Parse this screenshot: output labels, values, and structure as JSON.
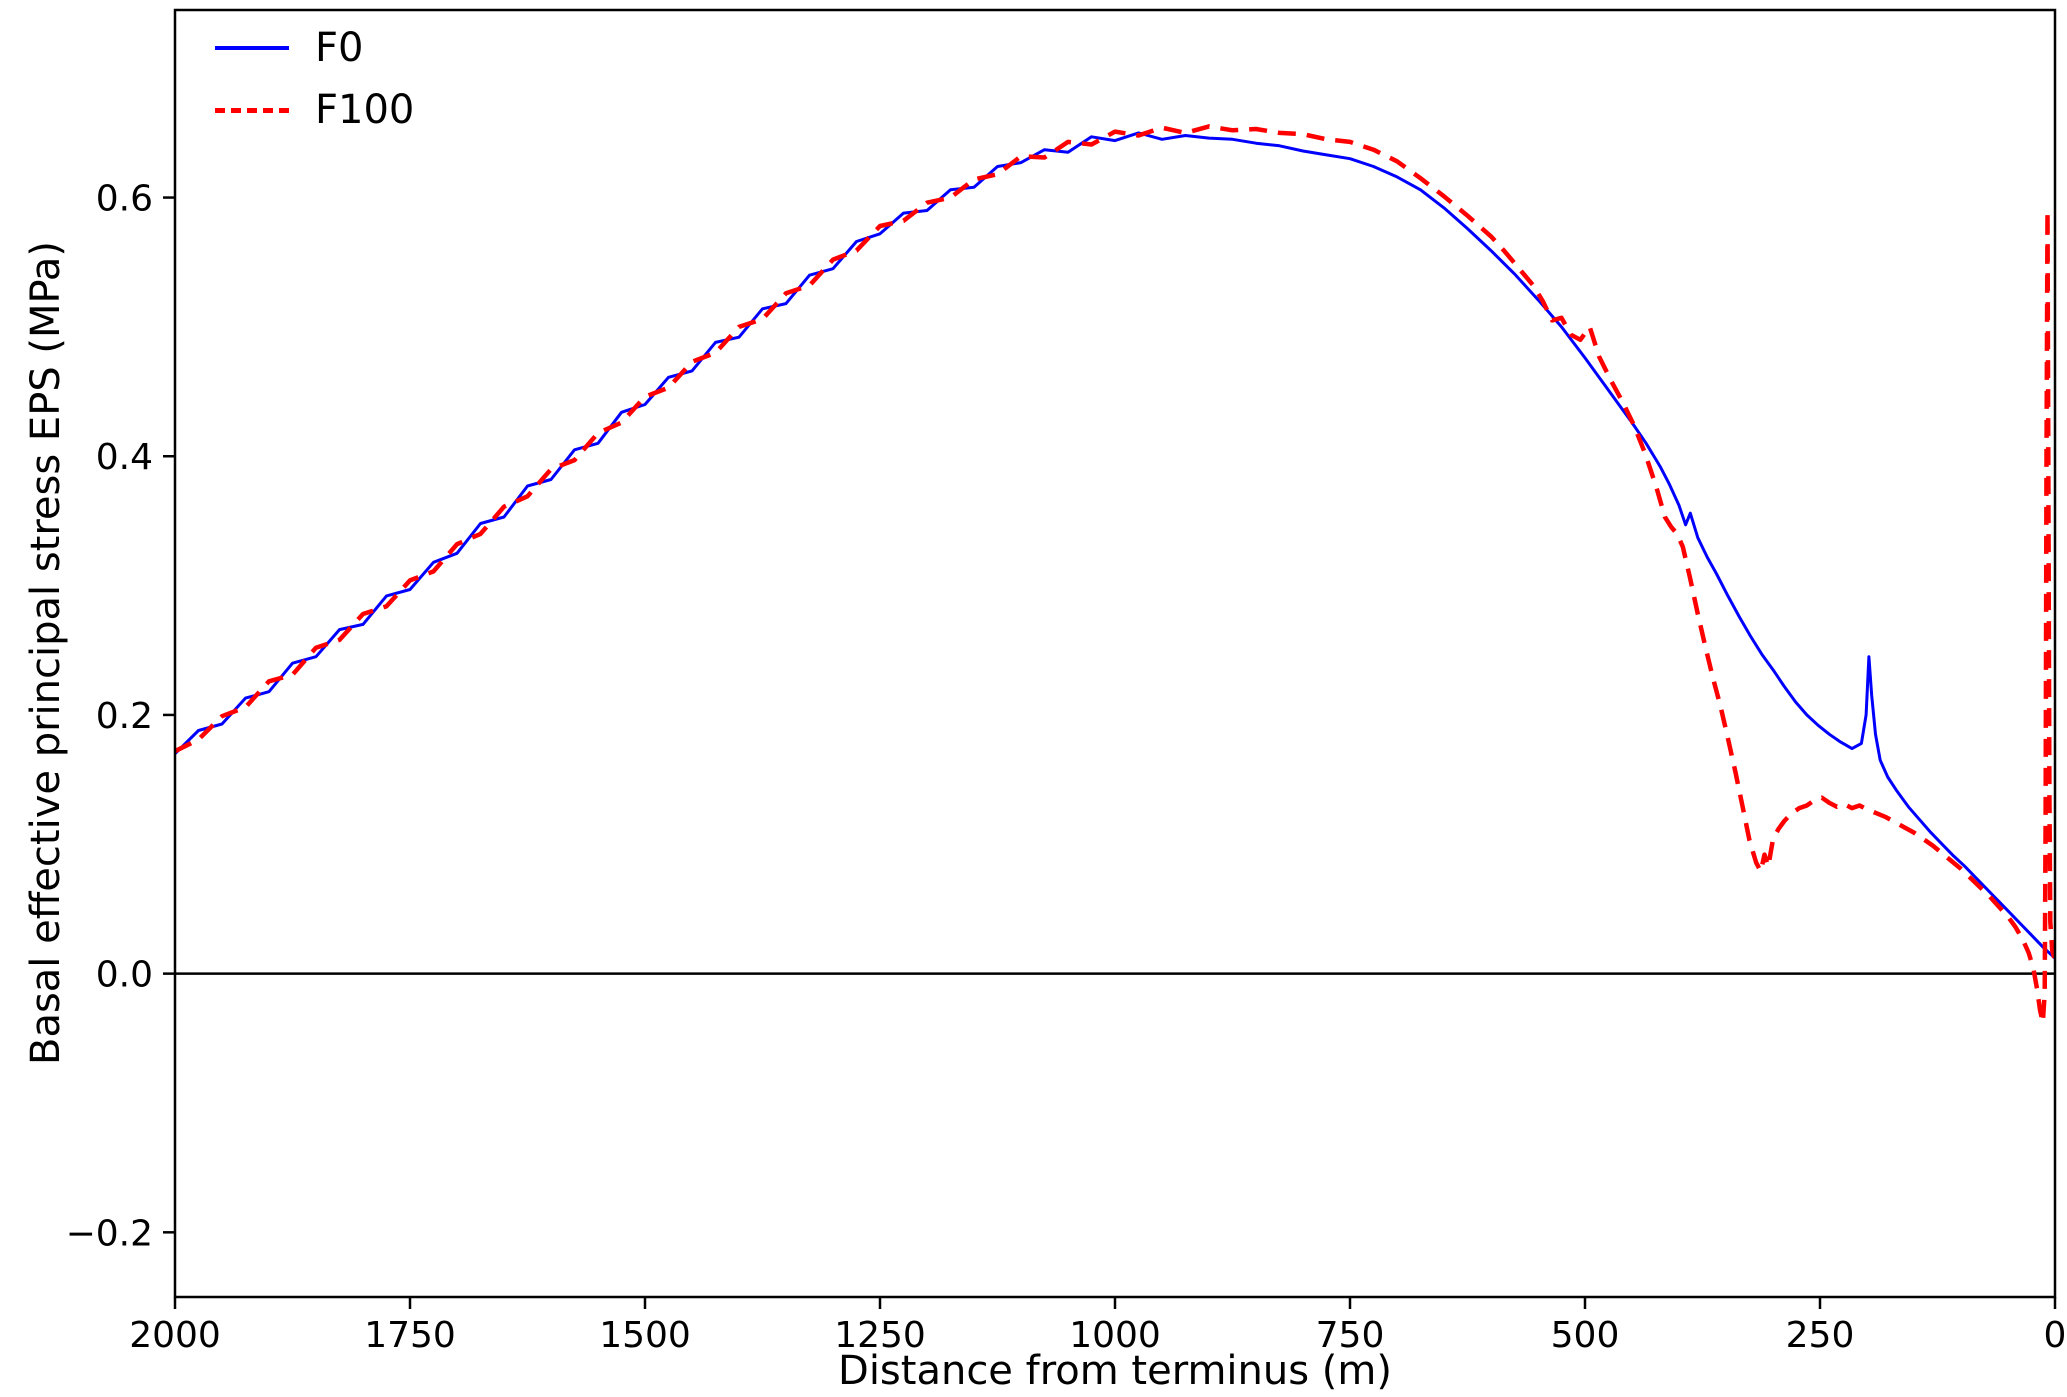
{
  "chart_data": {
    "type": "line",
    "title": "",
    "xlabel": "Distance from terminus (m)",
    "ylabel": "Basal effective principal stress EPS (MPa)",
    "xlim": [
      2000,
      0
    ],
    "ylim": [
      -0.25,
      0.745
    ],
    "x_axis_reversed": true,
    "grid": false,
    "zero_line": true,
    "legend_position": "upper left",
    "xticks": [
      {
        "v": 2000,
        "label": "2000"
      },
      {
        "v": 1750,
        "label": "1750"
      },
      {
        "v": 1500,
        "label": "1500"
      },
      {
        "v": 1250,
        "label": "1250"
      },
      {
        "v": 1000,
        "label": "1000"
      },
      {
        "v": 750,
        "label": "750"
      },
      {
        "v": 500,
        "label": "500"
      },
      {
        "v": 250,
        "label": "250"
      },
      {
        "v": 0,
        "label": "0"
      }
    ],
    "yticks": [
      {
        "v": -0.2,
        "label": "−0.2"
      },
      {
        "v": 0.0,
        "label": "0.0"
      },
      {
        "v": 0.2,
        "label": "0.2"
      },
      {
        "v": 0.4,
        "label": "0.4"
      },
      {
        "v": 0.6,
        "label": "0.6"
      }
    ],
    "series": [
      {
        "name": "F0",
        "color": "#0000ff",
        "line_style": "solid",
        "points": [
          [
            2000,
            0.17
          ],
          [
            1975,
            0.188
          ],
          [
            1950,
            0.193
          ],
          [
            1925,
            0.213
          ],
          [
            1900,
            0.218
          ],
          [
            1875,
            0.24
          ],
          [
            1850,
            0.245
          ],
          [
            1825,
            0.266
          ],
          [
            1800,
            0.27
          ],
          [
            1775,
            0.292
          ],
          [
            1750,
            0.297
          ],
          [
            1725,
            0.318
          ],
          [
            1700,
            0.325
          ],
          [
            1675,
            0.348
          ],
          [
            1650,
            0.353
          ],
          [
            1625,
            0.377
          ],
          [
            1600,
            0.382
          ],
          [
            1575,
            0.405
          ],
          [
            1550,
            0.41
          ],
          [
            1525,
            0.434
          ],
          [
            1500,
            0.44
          ],
          [
            1475,
            0.461
          ],
          [
            1450,
            0.466
          ],
          [
            1425,
            0.488
          ],
          [
            1400,
            0.492
          ],
          [
            1375,
            0.514
          ],
          [
            1350,
            0.518
          ],
          [
            1325,
            0.54
          ],
          [
            1300,
            0.545
          ],
          [
            1275,
            0.566
          ],
          [
            1250,
            0.572
          ],
          [
            1225,
            0.588
          ],
          [
            1200,
            0.59
          ],
          [
            1175,
            0.606
          ],
          [
            1150,
            0.608
          ],
          [
            1125,
            0.624
          ],
          [
            1100,
            0.627
          ],
          [
            1075,
            0.637
          ],
          [
            1050,
            0.635
          ],
          [
            1025,
            0.647
          ],
          [
            1000,
            0.644
          ],
          [
            975,
            0.65
          ],
          [
            950,
            0.645
          ],
          [
            925,
            0.648
          ],
          [
            900,
            0.646
          ],
          [
            875,
            0.645
          ],
          [
            850,
            0.642
          ],
          [
            825,
            0.64
          ],
          [
            800,
            0.636
          ],
          [
            775,
            0.633
          ],
          [
            750,
            0.63
          ],
          [
            725,
            0.624
          ],
          [
            700,
            0.616
          ],
          [
            675,
            0.606
          ],
          [
            650,
            0.592
          ],
          [
            625,
            0.576
          ],
          [
            600,
            0.559
          ],
          [
            575,
            0.541
          ],
          [
            550,
            0.521
          ],
          [
            525,
            0.5
          ],
          [
            500,
            0.476
          ],
          [
            480,
            0.456
          ],
          [
            465,
            0.441
          ],
          [
            450,
            0.426
          ],
          [
            435,
            0.41
          ],
          [
            420,
            0.392
          ],
          [
            410,
            0.378
          ],
          [
            400,
            0.362
          ],
          [
            393,
            0.347
          ],
          [
            388,
            0.356
          ],
          [
            380,
            0.337
          ],
          [
            370,
            0.322
          ],
          [
            360,
            0.309
          ],
          [
            348,
            0.292
          ],
          [
            336,
            0.276
          ],
          [
            324,
            0.261
          ],
          [
            312,
            0.247
          ],
          [
            300,
            0.235
          ],
          [
            288,
            0.222
          ],
          [
            276,
            0.21
          ],
          [
            264,
            0.2
          ],
          [
            252,
            0.192
          ],
          [
            240,
            0.185
          ],
          [
            228,
            0.179
          ],
          [
            216,
            0.174
          ],
          [
            206,
            0.178
          ],
          [
            201,
            0.2
          ],
          [
            198,
            0.245
          ],
          [
            195,
            0.215
          ],
          [
            191,
            0.185
          ],
          [
            186,
            0.165
          ],
          [
            178,
            0.152
          ],
          [
            168,
            0.141
          ],
          [
            156,
            0.129
          ],
          [
            144,
            0.119
          ],
          [
            132,
            0.109
          ],
          [
            120,
            0.1
          ],
          [
            108,
            0.091
          ],
          [
            96,
            0.083
          ],
          [
            84,
            0.074
          ],
          [
            72,
            0.065
          ],
          [
            60,
            0.056
          ],
          [
            48,
            0.047
          ],
          [
            36,
            0.038
          ],
          [
            24,
            0.029
          ],
          [
            12,
            0.02
          ],
          [
            0,
            0.012
          ]
        ]
      },
      {
        "name": "F100",
        "color": "#ff0000",
        "line_style": "dashed",
        "points": [
          [
            2000,
            0.172
          ],
          [
            1975,
            0.181
          ],
          [
            1950,
            0.199
          ],
          [
            1925,
            0.206
          ],
          [
            1900,
            0.226
          ],
          [
            1875,
            0.231
          ],
          [
            1850,
            0.252
          ],
          [
            1825,
            0.258
          ],
          [
            1800,
            0.278
          ],
          [
            1775,
            0.284
          ],
          [
            1750,
            0.304
          ],
          [
            1725,
            0.311
          ],
          [
            1700,
            0.332
          ],
          [
            1675,
            0.34
          ],
          [
            1650,
            0.361
          ],
          [
            1625,
            0.369
          ],
          [
            1600,
            0.39
          ],
          [
            1575,
            0.397
          ],
          [
            1550,
            0.418
          ],
          [
            1525,
            0.426
          ],
          [
            1500,
            0.446
          ],
          [
            1475,
            0.453
          ],
          [
            1450,
            0.473
          ],
          [
            1425,
            0.48
          ],
          [
            1400,
            0.5
          ],
          [
            1375,
            0.506
          ],
          [
            1350,
            0.526
          ],
          [
            1325,
            0.532
          ],
          [
            1300,
            0.552
          ],
          [
            1275,
            0.559
          ],
          [
            1250,
            0.578
          ],
          [
            1225,
            0.582
          ],
          [
            1200,
            0.596
          ],
          [
            1175,
            0.6
          ],
          [
            1150,
            0.614
          ],
          [
            1125,
            0.618
          ],
          [
            1100,
            0.632
          ],
          [
            1075,
            0.631
          ],
          [
            1050,
            0.643
          ],
          [
            1025,
            0.641
          ],
          [
            1000,
            0.651
          ],
          [
            975,
            0.648
          ],
          [
            950,
            0.654
          ],
          [
            925,
            0.65
          ],
          [
            900,
            0.655
          ],
          [
            875,
            0.652
          ],
          [
            850,
            0.653
          ],
          [
            825,
            0.65
          ],
          [
            800,
            0.649
          ],
          [
            775,
            0.645
          ],
          [
            750,
            0.643
          ],
          [
            725,
            0.637
          ],
          [
            700,
            0.628
          ],
          [
            675,
            0.615
          ],
          [
            650,
            0.601
          ],
          [
            625,
            0.586
          ],
          [
            600,
            0.57
          ],
          [
            585,
            0.558
          ],
          [
            570,
            0.545
          ],
          [
            555,
            0.532
          ],
          [
            545,
            0.52
          ],
          [
            535,
            0.505
          ],
          [
            525,
            0.507
          ],
          [
            515,
            0.494
          ],
          [
            505,
            0.49
          ],
          [
            495,
            0.5
          ],
          [
            485,
            0.477
          ],
          [
            472,
            0.458
          ],
          [
            460,
            0.442
          ],
          [
            448,
            0.424
          ],
          [
            436,
            0.402
          ],
          [
            424,
            0.376
          ],
          [
            415,
            0.353
          ],
          [
            408,
            0.345
          ],
          [
            402,
            0.34
          ],
          [
            396,
            0.33
          ],
          [
            388,
            0.305
          ],
          [
            380,
            0.278
          ],
          [
            372,
            0.253
          ],
          [
            364,
            0.229
          ],
          [
            356,
            0.207
          ],
          [
            348,
            0.182
          ],
          [
            340,
            0.156
          ],
          [
            332,
            0.128
          ],
          [
            325,
            0.103
          ],
          [
            318,
            0.086
          ],
          [
            313,
            0.079
          ],
          [
            309,
            0.092
          ],
          [
            305,
            0.083
          ],
          [
            300,
            0.104
          ],
          [
            294,
            0.112
          ],
          [
            288,
            0.118
          ],
          [
            280,
            0.124
          ],
          [
            272,
            0.128
          ],
          [
            264,
            0.13
          ],
          [
            256,
            0.134
          ],
          [
            248,
            0.136
          ],
          [
            240,
            0.132
          ],
          [
            232,
            0.129
          ],
          [
            224,
            0.131
          ],
          [
            216,
            0.128
          ],
          [
            208,
            0.13
          ],
          [
            200,
            0.127
          ],
          [
            190,
            0.124
          ],
          [
            180,
            0.121
          ],
          [
            170,
            0.117
          ],
          [
            160,
            0.113
          ],
          [
            150,
            0.109
          ],
          [
            140,
            0.104
          ],
          [
            130,
            0.099
          ],
          [
            120,
            0.093
          ],
          [
            110,
            0.087
          ],
          [
            100,
            0.081
          ],
          [
            90,
            0.074
          ],
          [
            80,
            0.067
          ],
          [
            70,
            0.06
          ],
          [
            60,
            0.052
          ],
          [
            50,
            0.044
          ],
          [
            42,
            0.036
          ],
          [
            34,
            0.026
          ],
          [
            28,
            0.016
          ],
          [
            23,
            0.004
          ],
          [
            19,
            -0.012
          ],
          [
            16,
            -0.028
          ],
          [
            13,
            -0.038
          ],
          [
            11,
            -0.015
          ],
          [
            10,
            0.12
          ],
          [
            9,
            0.4
          ],
          [
            8,
            0.59
          ],
          [
            7,
            0.38
          ],
          [
            6,
            0.14
          ],
          [
            5,
            0.04
          ],
          [
            3,
            0.018
          ],
          [
            0,
            0.01
          ]
        ]
      }
    ]
  }
}
